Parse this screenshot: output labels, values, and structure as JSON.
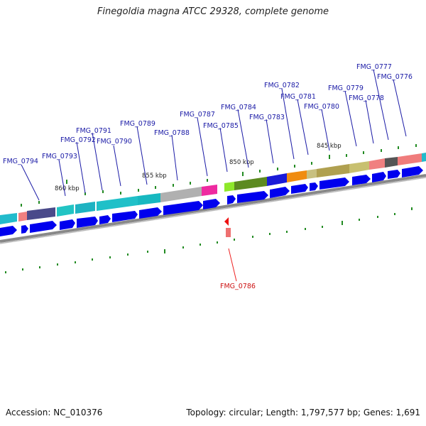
{
  "title": "Finegoldia magna ATCC 29328, complete genome",
  "footer": {
    "accession": "Accession: NC_010376",
    "topology": "Topology: circular; Length: 1,797,577 bp; Genes: 1,691"
  },
  "ticks": [
    "860 kbp",
    "855 kbp",
    "850 kbp",
    "845 kbp"
  ],
  "genes": [
    "FMG_0794",
    "FMG_0793",
    "FMG_0792",
    "FMG_0791",
    "FMG_0790",
    "FMG_0789",
    "FMG_0788",
    "FMG_0787",
    "FMG_0785",
    "FMG_0784",
    "FMG_0783",
    "FMG_0782",
    "FMG_0781",
    "FMG_0780",
    "FMG_0779",
    "FMG_0778",
    "FMG_0777",
    "FMG_0776"
  ],
  "highlighted_gene": "FMG_0786",
  "colors": {
    "label": "#1a1aa6",
    "highlight": "#cc1111",
    "cds": "#0000ee",
    "gc_tick": "#228b22",
    "backbone": "#888888"
  }
}
